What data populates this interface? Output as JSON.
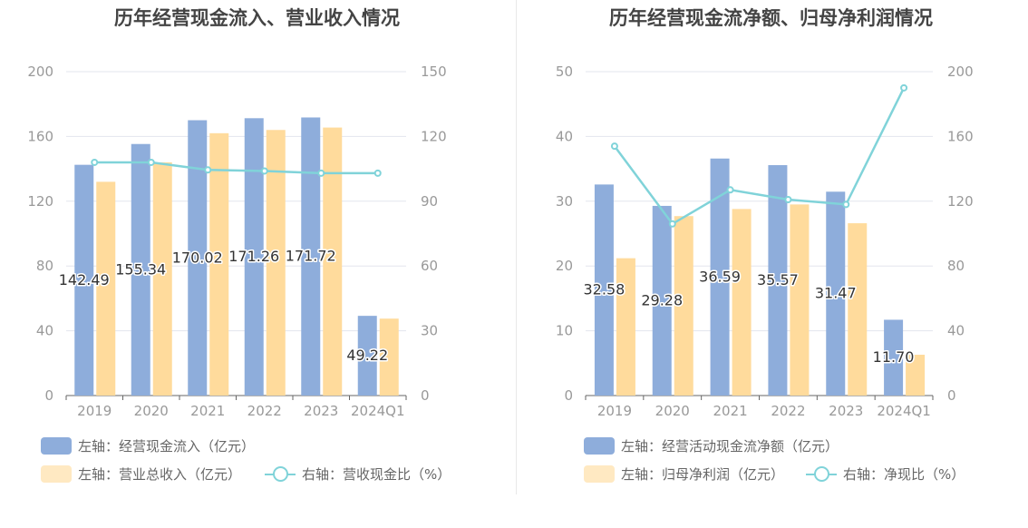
{
  "chart_data": [
    {
      "type": "bar",
      "title": "历年经营现金流入、营业收入情况",
      "categories": [
        "2019",
        "2020",
        "2021",
        "2022",
        "2023",
        "2024Q1"
      ],
      "y_left": {
        "ylim": [
          0,
          200
        ],
        "ticks": [
          "0",
          "40",
          "80",
          "120",
          "160",
          "200"
        ]
      },
      "y_right": {
        "ylim": [
          0,
          150
        ],
        "ticks": [
          "0",
          "30",
          "60",
          "90",
          "120",
          "150"
        ]
      },
      "series": [
        {
          "name": "左轴：经营现金流入（亿元）",
          "type": "bar",
          "axis": "left",
          "color": "#8eaddb",
          "values": [
            142.49,
            155.34,
            170.02,
            171.26,
            171.72,
            49.22
          ],
          "labels": [
            "142.49",
            "155.34",
            "170.02",
            "171.26",
            "171.72",
            "49.22"
          ]
        },
        {
          "name": "左轴：营业总收入（亿元）",
          "type": "bar",
          "axis": "left",
          "color": "#ffdb9c",
          "values": [
            132,
            144,
            162,
            164,
            165.5,
            47.5
          ]
        },
        {
          "name": "右轴：营收现金比（%）",
          "type": "line",
          "axis": "right",
          "color": "#80d3d9",
          "values": [
            108,
            108,
            104.5,
            104,
            103,
            103
          ]
        }
      ],
      "grid": true,
      "legend": "bottom"
    },
    {
      "type": "bar",
      "title": "历年经营现金流净额、归母净利润情况",
      "categories": [
        "2019",
        "2020",
        "2021",
        "2022",
        "2023",
        "2024Q1"
      ],
      "y_left": {
        "ylim": [
          0,
          50
        ],
        "ticks": [
          "0",
          "10",
          "20",
          "30",
          "40",
          "50"
        ]
      },
      "y_right": {
        "ylim": [
          0,
          200
        ],
        "ticks": [
          "0",
          "40",
          "80",
          "120",
          "160",
          "200"
        ]
      },
      "series": [
        {
          "name": "左轴：经营活动现金流净额（亿元）",
          "type": "bar",
          "axis": "left",
          "color": "#8eaddb",
          "values": [
            32.58,
            29.28,
            36.59,
            35.57,
            31.47,
            11.7
          ],
          "labels": [
            "32.58",
            "29.28",
            "36.59",
            "35.57",
            "31.47",
            "11.70"
          ]
        },
        {
          "name": "左轴：归母净利润（亿元）",
          "type": "bar",
          "axis": "left",
          "color": "#ffdb9c",
          "values": [
            21.2,
            27.7,
            28.8,
            29.5,
            26.6,
            6.3
          ]
        },
        {
          "name": "右轴：净现比（%）",
          "type": "line",
          "axis": "right",
          "color": "#80d3d9",
          "values": [
            154,
            106,
            127,
            121,
            118,
            190
          ]
        }
      ],
      "grid": true,
      "legend": "bottom"
    }
  ]
}
